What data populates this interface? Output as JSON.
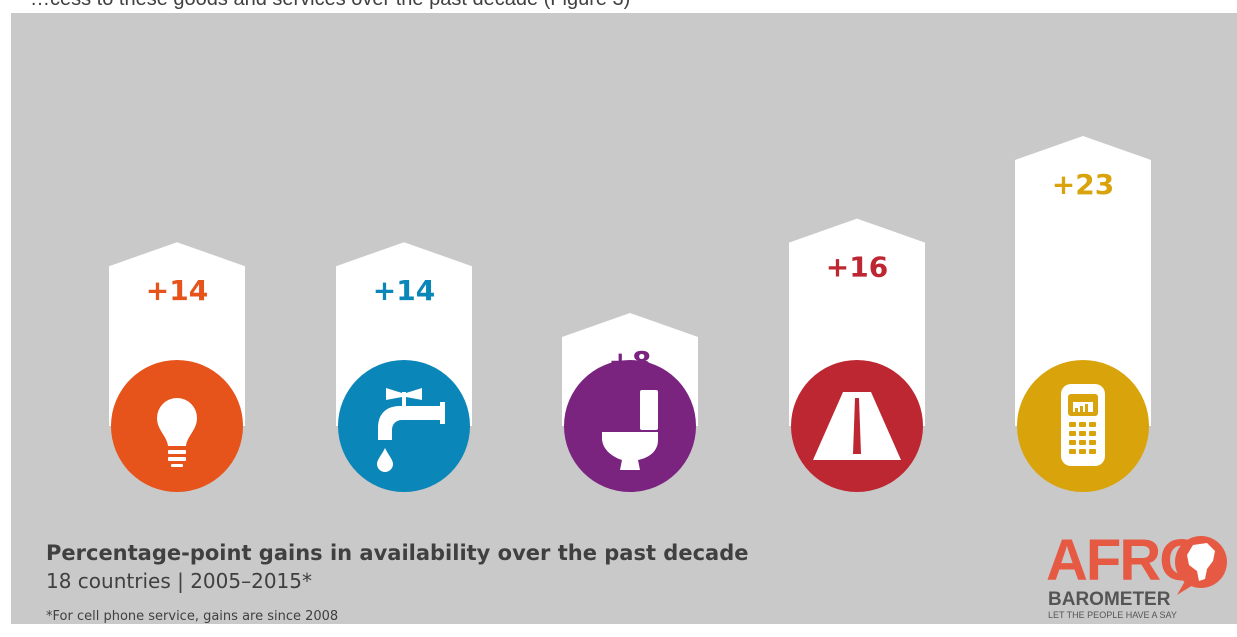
{
  "intro_text": "…cess to these goods and services over the past decade (Figure 3)",
  "chart_data": {
    "type": "bar",
    "title": "Percentage-point gains in availability over the past decade",
    "subtitle": "18 countries | 2005–2015*",
    "footnote": "*For cell phone service, gains are since 2008",
    "categories": [
      "electricity",
      "water",
      "sewerage",
      "paved road",
      "cell phone service"
    ],
    "values": [
      14,
      14,
      8,
      16,
      23
    ],
    "labels": [
      "+14",
      "+14",
      "+8",
      "+16",
      "+23"
    ],
    "colors": [
      "#e6531b",
      "#0a86b8",
      "#7a2480",
      "#bd2732",
      "#d9a30b"
    ],
    "icons": [
      "light-bulb-icon",
      "water-tap-icon",
      "toilet-icon",
      "road-icon",
      "cell-phone-icon"
    ]
  },
  "logo": {
    "name_top": "AFRO",
    "name_bottom": "BAROMETER",
    "tagline": "LET THE PEOPLE HAVE A SAY"
  }
}
